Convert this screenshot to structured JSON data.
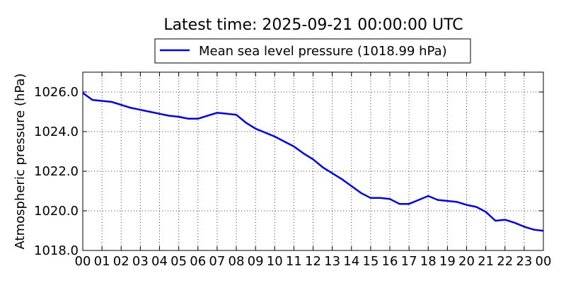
{
  "chart_data": {
    "type": "line",
    "title": "Latest time: 2025-09-21 00:00:00 UTC",
    "xlabel": "",
    "ylabel": "Atmospheric pressure (hPa)",
    "ylim": [
      1018.0,
      1027.0
    ],
    "xlim": [
      0,
      24
    ],
    "x_tick_labels": [
      "00",
      "01",
      "02",
      "03",
      "04",
      "05",
      "06",
      "07",
      "08",
      "09",
      "10",
      "11",
      "12",
      "13",
      "14",
      "15",
      "16",
      "17",
      "18",
      "19",
      "20",
      "21",
      "22",
      "23",
      "00"
    ],
    "y_tick_labels": [
      "1018.0",
      "1020.0",
      "1022.0",
      "1024.0",
      "1026.0"
    ],
    "y_tick_values": [
      1018.0,
      1020.0,
      1022.0,
      1024.0,
      1026.0
    ],
    "grid": true,
    "legend_position": "top-center",
    "colors": {
      "series": "#0000ff"
    },
    "series": [
      {
        "name": "Mean sea level pressure (1018.99 hPa)",
        "x": [
          0,
          0.5,
          1,
          1.5,
          2,
          2.5,
          3,
          3.5,
          4,
          4.5,
          5,
          5.5,
          6,
          6.5,
          7,
          7.5,
          8,
          8.5,
          9,
          9.5,
          10,
          10.5,
          11,
          11.5,
          12,
          12.5,
          13,
          13.5,
          14,
          14.5,
          15,
          15.5,
          16,
          16.5,
          17,
          17.5,
          18,
          18.5,
          19,
          19.5,
          20,
          20.5,
          21,
          21.5,
          22,
          22.5,
          23,
          23.5,
          24
        ],
        "values": [
          1025.95,
          1025.6,
          1025.55,
          1025.5,
          1025.35,
          1025.2,
          1025.1,
          1025.0,
          1024.9,
          1024.8,
          1024.75,
          1024.65,
          1024.65,
          1024.8,
          1024.95,
          1024.9,
          1024.85,
          1024.45,
          1024.15,
          1023.95,
          1023.75,
          1023.5,
          1023.25,
          1022.9,
          1022.6,
          1022.2,
          1021.9,
          1021.6,
          1021.25,
          1020.9,
          1020.65,
          1020.65,
          1020.6,
          1020.35,
          1020.35,
          1020.55,
          1020.75,
          1020.55,
          1020.5,
          1020.45,
          1020.3,
          1020.2,
          1019.95,
          1019.5,
          1019.55,
          1019.4,
          1019.2,
          1019.05,
          1018.99
        ]
      }
    ]
  }
}
